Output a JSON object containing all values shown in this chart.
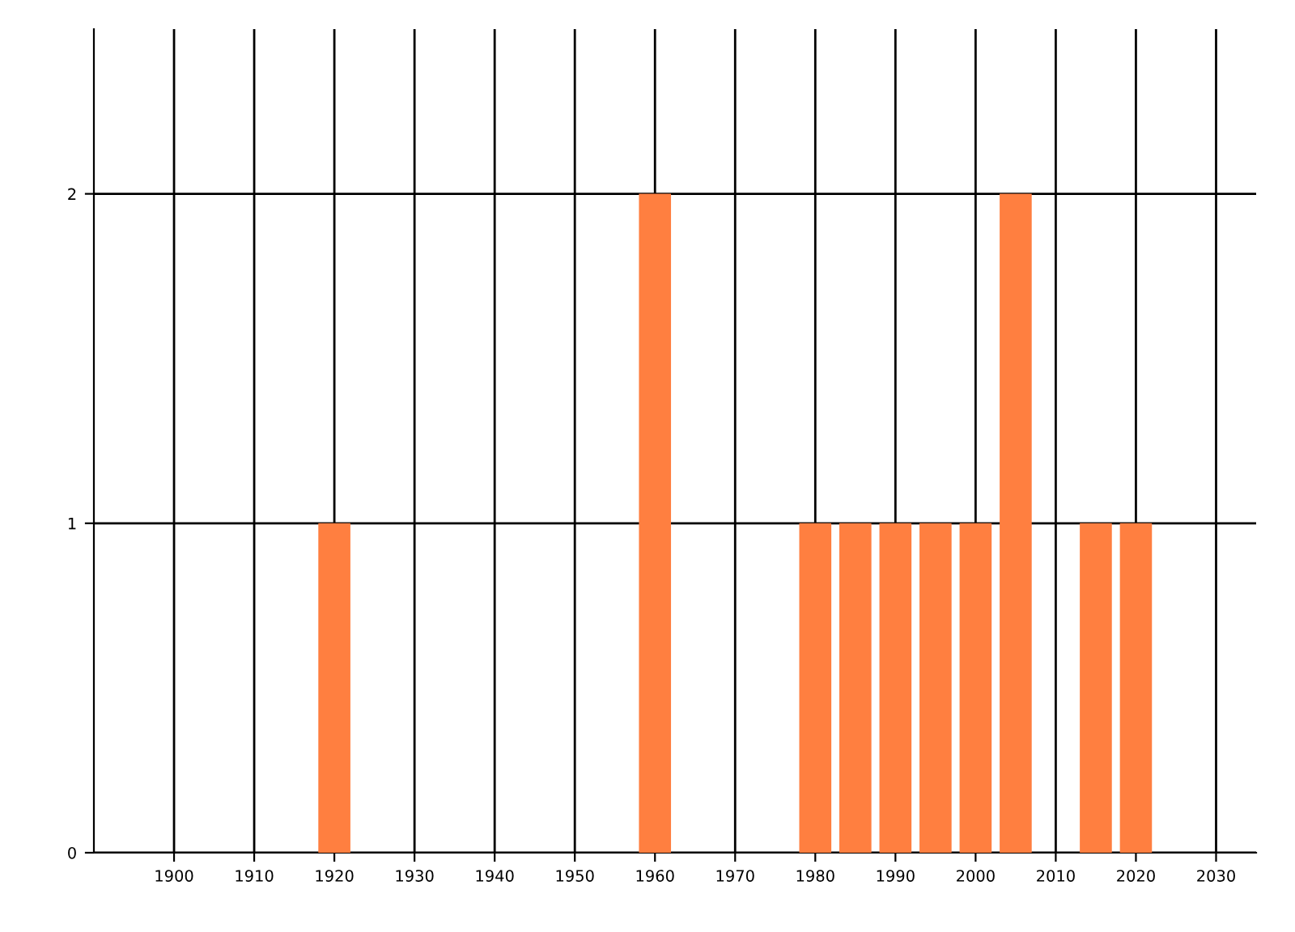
{
  "chart_data": {
    "type": "bar",
    "x": [
      1920,
      1960,
      1980,
      1985,
      1990,
      1995,
      2000,
      2005,
      2015,
      2020
    ],
    "values": [
      1,
      2,
      1,
      1,
      1,
      1,
      1,
      2,
      1,
      1
    ],
    "color": "#ff7f40",
    "xlim": [
      1890,
      2035
    ],
    "xticks": [
      1900,
      1910,
      1920,
      1930,
      1940,
      1950,
      1960,
      1970,
      1980,
      1990,
      2000,
      2010,
      2020,
      2030
    ],
    "ylim": [
      0,
      2.5
    ],
    "yticks": [
      0,
      1,
      2
    ],
    "grid": true,
    "legend": false
  }
}
